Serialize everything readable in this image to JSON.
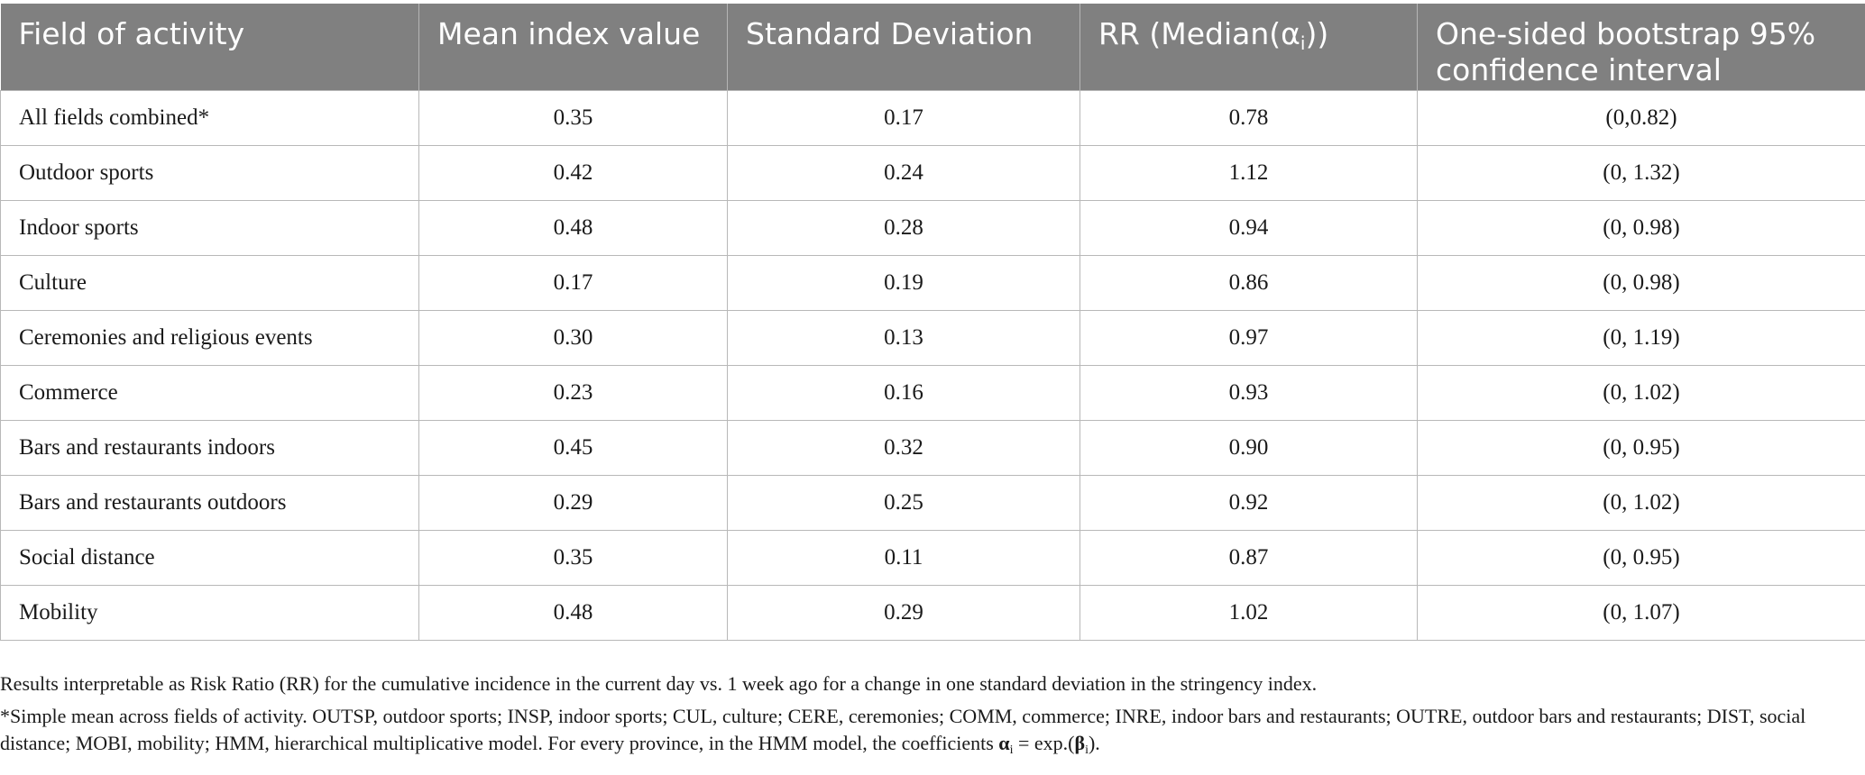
{
  "table": {
    "headers": [
      "Field of activity",
      "Mean index value",
      "Standard Deviation",
      "RR (Median(α",
      "One-sided bootstrap 95% confidence interval"
    ],
    "header_rr_subscript": "i",
    "header_rr_close": "))",
    "rows": [
      [
        "All fields combined*",
        "0.35",
        "0.17",
        "0.78",
        "(0,0.82)"
      ],
      [
        "Outdoor sports",
        "0.42",
        "0.24",
        "1.12",
        "(0, 1.32)"
      ],
      [
        "Indoor sports",
        "0.48",
        "0.28",
        "0.94",
        "(0, 0.98)"
      ],
      [
        "Culture",
        "0.17",
        "0.19",
        "0.86",
        "(0, 0.98)"
      ],
      [
        "Ceremonies and religious events",
        "0.30",
        "0.13",
        "0.97",
        "(0, 1.19)"
      ],
      [
        "Commerce",
        "0.23",
        "0.16",
        "0.93",
        "(0, 1.02)"
      ],
      [
        "Bars and restaurants indoors",
        "0.45",
        "0.32",
        "0.90",
        "(0, 0.95)"
      ],
      [
        "Bars and restaurants outdoors",
        "0.29",
        "0.25",
        "0.92",
        "(0, 1.02)"
      ],
      [
        "Social distance",
        "0.35",
        "0.11",
        "0.87",
        "(0, 0.95)"
      ],
      [
        "Mobility",
        "0.48",
        "0.29",
        "1.02",
        "(0, 1.07)"
      ]
    ]
  },
  "notes": {
    "line1": "Results interpretable as Risk Ratio (RR) for the cumulative incidence in the current day vs. 1 week ago for a change in one standard deviation in the stringency index.",
    "line2_text": "*Simple mean across fields of activity. OUTSP, outdoor sports; INSP, indoor sports; CUL, culture; CERE, ceremonies; COMM, commerce; INRE, indoor bars and restaurants; OUTRE, outdoor bars and restaurants; DIST, social distance; MOBI, mobility; HMM, hierarchical multiplicative model. For every province, in the HMM model, the coefficients ",
    "alpha": "α",
    "sub_i": "i",
    "equals_exp": " = exp.(",
    "beta": "β",
    "closing": ")."
  }
}
